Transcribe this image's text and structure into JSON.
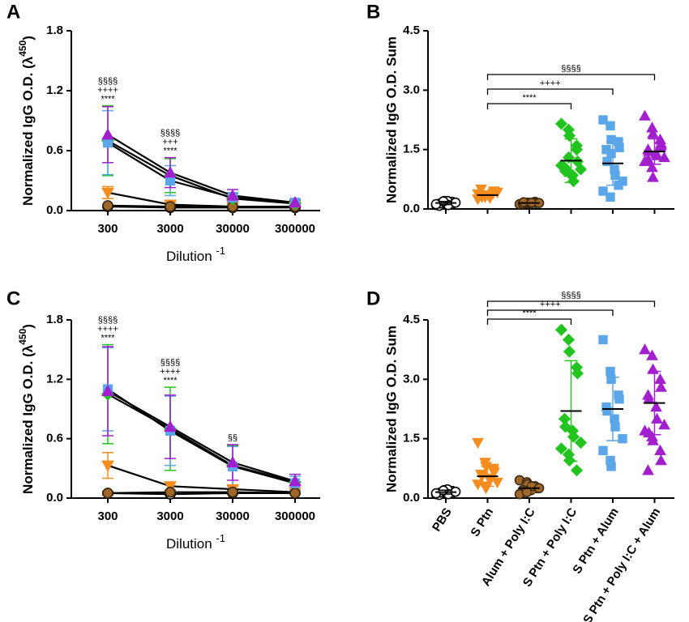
{
  "chart_data": [
    {
      "type": "line",
      "panel": "A",
      "ylabel": [
        "Normalized IgG O.D. (λ",
        "450",
        ")"
      ],
      "xlabel": [
        "Dilution ",
        "-1"
      ],
      "categories": [
        "300",
        "3000",
        "30000",
        "300000"
      ],
      "ylim": [
        0,
        1.8
      ],
      "yticks": [
        {
          "value": 0,
          "label": "0.0"
        },
        0.6,
        1.2,
        1.8
      ],
      "series": [
        {
          "color": "#000000",
          "marker": "circle-open",
          "values": [
            0.04,
            0.03,
            0.03,
            0.03
          ],
          "errors": [
            0.01,
            0.01,
            0.01,
            0.01
          ]
        },
        {
          "color": "#f58c1e",
          "marker": "triangle-down",
          "values": [
            0.18,
            0.06,
            0.04,
            0.04
          ],
          "errors": [
            0.06,
            0.02,
            0.01,
            0.01
          ]
        },
        {
          "color": "#a0672a",
          "marker": "circle",
          "values": [
            0.05,
            0.04,
            0.04,
            0.04
          ],
          "errors": [
            0.01,
            0.01,
            0.01,
            0.01
          ]
        },
        {
          "color": "#22c41f",
          "marker": "diamond",
          "values": [
            0.7,
            0.35,
            0.12,
            0.07
          ],
          "errors": [
            0.35,
            0.17,
            0.05,
            0.03
          ]
        },
        {
          "color": "#5aa6e8",
          "marker": "square",
          "values": [
            0.68,
            0.3,
            0.13,
            0.08
          ],
          "errors": [
            0.32,
            0.15,
            0.05,
            0.03
          ]
        },
        {
          "color": "#a21fce",
          "marker": "triangle-up",
          "values": [
            0.76,
            0.38,
            0.15,
            0.08
          ],
          "errors": [
            0.28,
            0.15,
            0.06,
            0.03
          ]
        }
      ],
      "annotations": [
        {
          "at": "300",
          "lines": [
            "§§§§",
            "++++",
            "****"
          ]
        },
        {
          "at": "3000",
          "lines": [
            "§§§§",
            "+++",
            "****"
          ]
        }
      ]
    },
    {
      "type": "strip",
      "panel": "B",
      "ylabel": "Normalized IgG O.D. Sum",
      "ylim": [
        0,
        4.5
      ],
      "yticks": [
        {
          "value": 0,
          "label": "0.0"
        },
        1.5,
        {
          "value": 3,
          "label": "3.0"
        },
        4.5
      ],
      "series": [
        {
          "color": "#000000",
          "marker": "circle-open",
          "mean": 0.15,
          "sd": 0.04,
          "values": [
            0.1,
            0.15,
            0.2,
            0.12,
            0.18,
            0.08,
            0.14,
            0.2,
            0.1,
            0.16,
            0.12,
            0.19
          ]
        },
        {
          "color": "#f58c1e",
          "marker": "triangle-down",
          "mean": 0.35,
          "sd": 0.08,
          "values": [
            0.25,
            0.3,
            0.35,
            0.4,
            0.45,
            0.5,
            0.3,
            0.35,
            0.28,
            0.42,
            0.38,
            0.32
          ]
        },
        {
          "color": "#a0672a",
          "marker": "circle",
          "mean": 0.15,
          "sd": 0.02,
          "values": [
            0.12,
            0.14,
            0.16,
            0.18,
            0.15,
            0.13,
            0.17,
            0.14,
            0.16,
            0.15
          ]
        },
        {
          "color": "#22c41f",
          "marker": "diamond",
          "mean": 1.22,
          "sd": 0.55,
          "values": [
            2.15,
            2.0,
            1.85,
            1.5,
            1.2,
            1.05,
            0.95,
            0.85,
            0.7,
            1.0,
            1.1,
            1.3,
            0.9,
            1.6
          ]
        },
        {
          "color": "#5aa6e8",
          "marker": "square",
          "mean": 1.15,
          "sd": 0.55,
          "values": [
            2.25,
            2.1,
            1.75,
            1.7,
            1.55,
            1.5,
            1.2,
            1.0,
            0.85,
            0.7,
            0.45,
            0.3,
            1.4,
            0.6
          ]
        },
        {
          "color": "#a21fce",
          "marker": "triangle-up",
          "mean": 1.45,
          "sd": 0.32,
          "values": [
            2.35,
            2.05,
            1.9,
            1.75,
            1.6,
            1.5,
            1.45,
            1.4,
            1.35,
            1.3,
            1.2,
            1.05,
            0.8,
            1.55,
            1.65,
            1.25
          ]
        }
      ],
      "brackets": [
        {
          "from": 1,
          "to": 3,
          "label": "****"
        },
        {
          "from": 1,
          "to": 4,
          "label": "++++"
        },
        {
          "from": 1,
          "to": 5,
          "label": "§§§§"
        }
      ]
    },
    {
      "type": "line",
      "panel": "C",
      "ylabel": [
        "Normalized IgG O.D. (λ",
        "450",
        ")"
      ],
      "xlabel": [
        "Dilution ",
        "-1"
      ],
      "categories": [
        "300",
        "3000",
        "30000",
        "300000"
      ],
      "ylim": [
        0,
        1.8
      ],
      "yticks": [
        {
          "value": 0,
          "label": "0.0"
        },
        0.6,
        1.2,
        1.8
      ],
      "series": [
        {
          "color": "#000000",
          "marker": "circle-open",
          "values": [
            0.05,
            0.04,
            0.05,
            0.05
          ],
          "errors": [
            0.01,
            0.01,
            0.01,
            0.01
          ]
        },
        {
          "color": "#f58c1e",
          "marker": "triangle-down",
          "values": [
            0.33,
            0.12,
            0.09,
            0.06
          ],
          "errors": [
            0.13,
            0.04,
            0.03,
            0.02
          ]
        },
        {
          "color": "#a0672a",
          "marker": "circle",
          "values": [
            0.05,
            0.06,
            0.06,
            0.05
          ],
          "errors": [
            0.02,
            0.02,
            0.02,
            0.01
          ]
        },
        {
          "color": "#22c41f",
          "marker": "diamond",
          "values": [
            1.05,
            0.7,
            0.33,
            0.16
          ],
          "errors": [
            0.5,
            0.42,
            0.2,
            0.08
          ]
        },
        {
          "color": "#5aa6e8",
          "marker": "square",
          "values": [
            1.1,
            0.68,
            0.32,
            0.15
          ],
          "errors": [
            0.42,
            0.35,
            0.2,
            0.07
          ]
        },
        {
          "color": "#a21fce",
          "marker": "triangle-up",
          "values": [
            1.08,
            0.72,
            0.36,
            0.17
          ],
          "errors": [
            0.45,
            0.32,
            0.18,
            0.07
          ]
        }
      ],
      "annotations": [
        {
          "at": "300",
          "lines": [
            "§§§§",
            "++++",
            "****"
          ]
        },
        {
          "at": "3000",
          "lines": [
            "§§§§",
            "++++",
            "****"
          ]
        },
        {
          "at": "30000",
          "lines": [
            "§§"
          ]
        }
      ]
    },
    {
      "type": "strip",
      "panel": "D",
      "ylabel": "Normalized IgG O.D. Sum",
      "categories": [
        "PBS",
        "S Ptn",
        "Alum + Poly I:C",
        "S Ptn + Poly I:C",
        "S Ptn + Alum",
        "S Ptn + Poly I:C + Alum"
      ],
      "ylim": [
        0,
        4.5
      ],
      "yticks": [
        {
          "value": 0,
          "label": "0.0"
        },
        1.5,
        {
          "value": 3,
          "label": "3.0"
        },
        4.5
      ],
      "series": [
        {
          "color": "#000000",
          "marker": "circle-open",
          "mean": 0.15,
          "sd": 0.05,
          "values": [
            0.1,
            0.15,
            0.2,
            0.12,
            0.18,
            0.08,
            0.14,
            0.22,
            0.1,
            0.16,
            0.12,
            0.19
          ]
        },
        {
          "color": "#f58c1e",
          "marker": "triangle-down",
          "mean": 0.55,
          "sd": 0.25,
          "values": [
            1.4,
            0.9,
            0.8,
            0.7,
            0.65,
            0.6,
            0.55,
            0.5,
            0.45,
            0.4,
            0.35,
            0.3,
            0.25,
            0.75
          ]
        },
        {
          "color": "#a0672a",
          "marker": "circle",
          "mean": 0.25,
          "sd": 0.1,
          "values": [
            0.45,
            0.4,
            0.35,
            0.3,
            0.25,
            0.2,
            0.15,
            0.2,
            0.3,
            0.25,
            0.1,
            0.15
          ]
        },
        {
          "color": "#22c41f",
          "marker": "diamond",
          "mean": 2.2,
          "sd": 1.27,
          "values": [
            4.25,
            4.0,
            3.7,
            3.3,
            3.15,
            2.0,
            1.8,
            1.7,
            1.55,
            1.4,
            1.25,
            1.1,
            0.95,
            0.7
          ]
        },
        {
          "color": "#5aa6e8",
          "marker": "square",
          "mean": 2.25,
          "sd": 0.8,
          "values": [
            4.0,
            3.2,
            3.0,
            2.6,
            2.5,
            2.3,
            2.2,
            2.0,
            1.8,
            1.5,
            1.2,
            0.95,
            0.8
          ]
        },
        {
          "color": "#a21fce",
          "marker": "triangle-up",
          "mean": 2.4,
          "sd": 0.8,
          "values": [
            3.75,
            3.6,
            3.25,
            3.0,
            2.8,
            2.6,
            2.5,
            2.3,
            2.0,
            1.85,
            1.7,
            1.55,
            1.45,
            1.2,
            0.95,
            0.7,
            1.65
          ]
        }
      ],
      "brackets": [
        {
          "from": 1,
          "to": 3,
          "label": "****"
        },
        {
          "from": 1,
          "to": 4,
          "label": "++++"
        },
        {
          "from": 1,
          "to": 5,
          "label": "§§§§"
        }
      ]
    }
  ]
}
